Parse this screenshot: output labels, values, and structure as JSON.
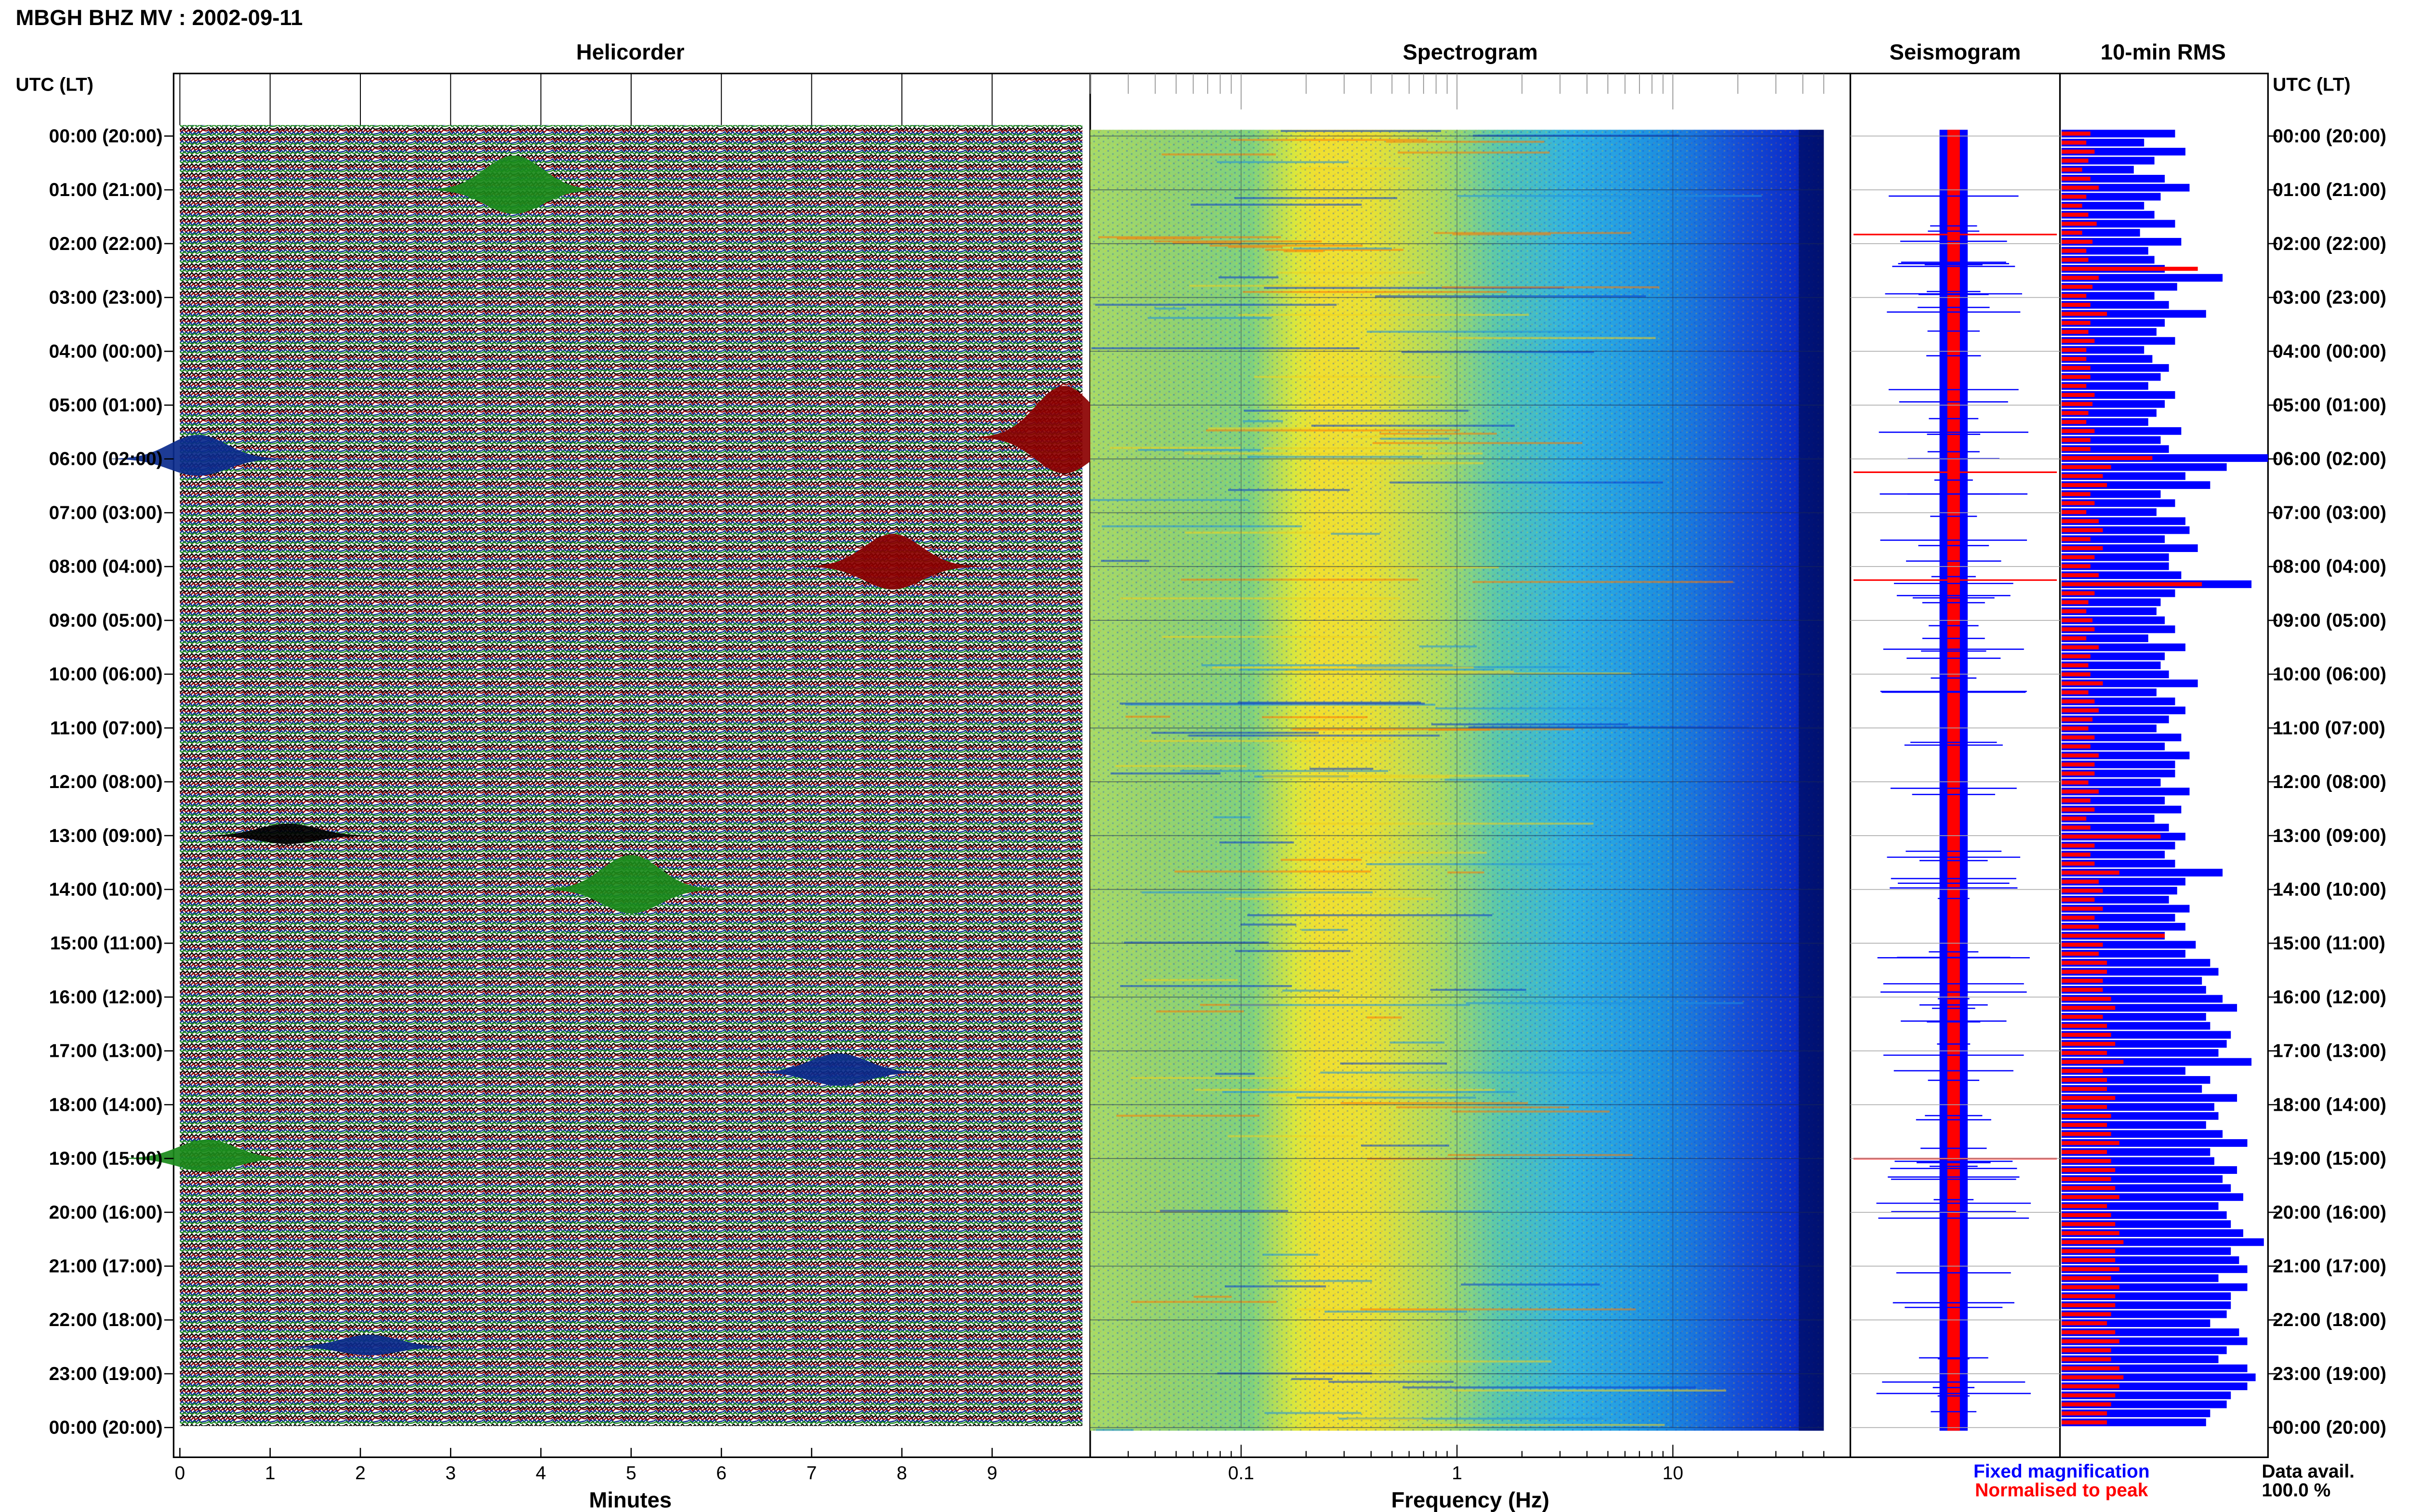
{
  "header": {
    "title": "MBGH BHZ MV : 2002-09-11"
  },
  "panels": {
    "helicorder": "Helicorder",
    "spectrogram": "Spectrogram",
    "seismogram": "Seismogram",
    "rms": "10-min RMS"
  },
  "axes": {
    "time_label_left": "UTC (LT)",
    "time_label_right": "UTC (LT)",
    "minutes_label": "Minutes",
    "frequency_label": "Frequency (Hz)",
    "minute_ticks": [
      "0",
      "1",
      "2",
      "3",
      "4",
      "5",
      "6",
      "7",
      "8",
      "9"
    ],
    "frequency_ticks": [
      "0.1",
      "1",
      "10"
    ]
  },
  "hour_labels": [
    "00:00 (20:00)",
    "01:00 (21:00)",
    "02:00 (22:00)",
    "03:00 (23:00)",
    "04:00 (00:00)",
    "05:00 (01:00)",
    "06:00 (02:00)",
    "07:00 (03:00)",
    "08:00 (04:00)",
    "09:00 (05:00)",
    "10:00 (06:00)",
    "11:00 (07:00)",
    "12:00 (08:00)",
    "13:00 (09:00)",
    "14:00 (10:00)",
    "15:00 (11:00)",
    "16:00 (12:00)",
    "17:00 (13:00)",
    "18:00 (14:00)",
    "19:00 (15:00)",
    "20:00 (16:00)",
    "21:00 (17:00)",
    "22:00 (18:00)",
    "23:00 (19:00)",
    "00:00 (20:00)"
  ],
  "legend": {
    "fixed": "Fixed magnification",
    "normalised": "Normalised to peak",
    "fixed_color": "#0000ff",
    "normalised_color": "#ff0000"
  },
  "availability": {
    "label": "Data avail.",
    "value": "100.0 %"
  },
  "colors": {
    "trace_cycle": [
      "#000000",
      "#8b0000",
      "#0a2a8c",
      "#1a8a1a"
    ],
    "rms_fixed": "#0000ff",
    "rms_normalised": "#ff0000"
  },
  "chart_data": {
    "type": "heatmap",
    "helicorder": {
      "x_range_minutes": [
        0,
        10
      ],
      "rows": 144,
      "events": [
        {
          "hour": 1.0,
          "minute": 3.7,
          "color": "green",
          "amp": 40
        },
        {
          "hour": 5.6,
          "minute": 9.8,
          "color": "darkred",
          "amp": 60
        },
        {
          "hour": 6.0,
          "minute": 0.2,
          "color": "navy",
          "amp": 28
        },
        {
          "hour": 8.0,
          "minute": 7.9,
          "color": "darkred",
          "amp": 38
        },
        {
          "hour": 13.0,
          "minute": 1.2,
          "color": "black",
          "amp": 14
        },
        {
          "hour": 14.0,
          "minute": 5.0,
          "color": "green",
          "amp": 40
        },
        {
          "hour": 17.4,
          "minute": 7.3,
          "color": "navy",
          "amp": 22
        },
        {
          "hour": 19.0,
          "minute": 0.3,
          "color": "green",
          "amp": 22
        },
        {
          "hour": 22.5,
          "minute": 2.1,
          "color": "navy",
          "amp": 14
        }
      ]
    },
    "spectrogram": {
      "x_scale": "log",
      "x_range_hz": [
        0.02,
        50
      ],
      "peak_band_hz": [
        0.2,
        0.6
      ]
    },
    "rms": {
      "series": [
        {
          "name": "Fixed magnification",
          "values": [
            0.55,
            0.4,
            0.6,
            0.45,
            0.35,
            0.5,
            0.62,
            0.48,
            0.4,
            0.45,
            0.55,
            0.38,
            0.58,
            0.42,
            0.45,
            0.5,
            0.78,
            0.56,
            0.45,
            0.52,
            0.7,
            0.5,
            0.46,
            0.55,
            0.4,
            0.44,
            0.52,
            0.48,
            0.42,
            0.55,
            0.5,
            0.46,
            0.42,
            0.58,
            0.48,
            0.52,
            1.0,
            0.8,
            0.6,
            0.72,
            0.48,
            0.55,
            0.46,
            0.6,
            0.62,
            0.5,
            0.66,
            0.52,
            0.52,
            0.58,
            0.92,
            0.55,
            0.48,
            0.46,
            0.5,
            0.55,
            0.42,
            0.6,
            0.5,
            0.48,
            0.52,
            0.66,
            0.46,
            0.55,
            0.6,
            0.52,
            0.46,
            0.58,
            0.5,
            0.62,
            0.55,
            0.55,
            0.48,
            0.62,
            0.5,
            0.58,
            0.45,
            0.52,
            0.6,
            0.55,
            0.5,
            0.55,
            0.78,
            0.6,
            0.56,
            0.52,
            0.62,
            0.55,
            0.6,
            0.5,
            0.65,
            0.6,
            0.72,
            0.76,
            0.68,
            0.7,
            0.78,
            0.85,
            0.7,
            0.72,
            0.82,
            0.8,
            0.76,
            0.92,
            0.6,
            0.72,
            0.68,
            0.85,
            0.74,
            0.76,
            0.7,
            0.78,
            0.9,
            0.72,
            0.74,
            0.85,
            0.78,
            0.82,
            0.88,
            0.76,
            0.8,
            0.82,
            0.88,
            0.98,
            0.82,
            0.86,
            0.9,
            0.76,
            0.9,
            0.82,
            0.82,
            0.8,
            0.72,
            0.86,
            0.9,
            0.8,
            0.76,
            0.9,
            0.94,
            0.9,
            0.82,
            0.8,
            0.72,
            0.7
          ]
        },
        {
          "name": "Normalised to peak",
          "values": [
            0.14,
            0.12,
            0.16,
            0.13,
            0.1,
            0.14,
            0.18,
            0.12,
            0.1,
            0.13,
            0.17,
            0.1,
            0.15,
            0.12,
            0.13,
            0.66,
            0.18,
            0.15,
            0.12,
            0.14,
            0.22,
            0.14,
            0.13,
            0.16,
            0.12,
            0.12,
            0.14,
            0.14,
            0.12,
            0.16,
            0.15,
            0.13,
            0.12,
            0.16,
            0.14,
            0.14,
            0.44,
            0.24,
            0.2,
            0.22,
            0.14,
            0.16,
            0.12,
            0.18,
            0.2,
            0.14,
            0.2,
            0.16,
            0.14,
            0.18,
            0.68,
            0.16,
            0.13,
            0.12,
            0.15,
            0.16,
            0.12,
            0.18,
            0.14,
            0.13,
            0.14,
            0.2,
            0.13,
            0.16,
            0.18,
            0.15,
            0.13,
            0.16,
            0.14,
            0.18,
            0.16,
            0.16,
            0.13,
            0.18,
            0.14,
            0.16,
            0.12,
            0.14,
            0.48,
            0.16,
            0.14,
            0.16,
            0.28,
            0.18,
            0.2,
            0.16,
            0.2,
            0.16,
            0.18,
            0.5,
            0.2,
            0.18,
            0.22,
            0.22,
            0.2,
            0.2,
            0.24,
            0.26,
            0.2,
            0.22,
            0.24,
            0.26,
            0.22,
            0.3,
            0.2,
            0.22,
            0.22,
            0.26,
            0.22,
            0.24,
            0.22,
            0.24,
            0.28,
            0.22,
            0.24,
            0.26,
            0.24,
            0.26,
            0.28,
            0.22,
            0.24,
            0.26,
            0.28,
            0.3,
            0.26,
            0.26,
            0.28,
            0.24,
            0.28,
            0.26,
            0.26,
            0.24,
            0.22,
            0.26,
            0.28,
            0.24,
            0.24,
            0.28,
            0.3,
            0.28,
            0.26,
            0.24,
            0.22,
            0.22
          ]
        }
      ]
    }
  }
}
